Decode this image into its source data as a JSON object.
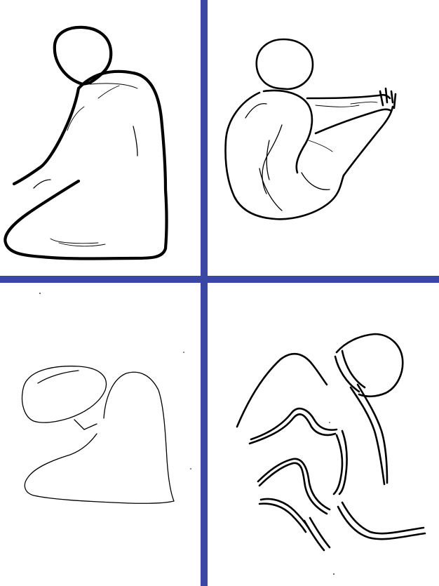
{
  "panels": [
    {
      "name": "top-left",
      "subject": "seated-figure-heavy-outline"
    },
    {
      "name": "top-right",
      "subject": "crouching-figure-arms-extended"
    },
    {
      "name": "bottom-left",
      "subject": "seated-figure-thin-outline"
    },
    {
      "name": "bottom-right",
      "subject": "abstract-double-line-figure"
    }
  ],
  "colors": {
    "divider": "#3b48a3",
    "ink": "#000000",
    "background": "#ffffff"
  }
}
